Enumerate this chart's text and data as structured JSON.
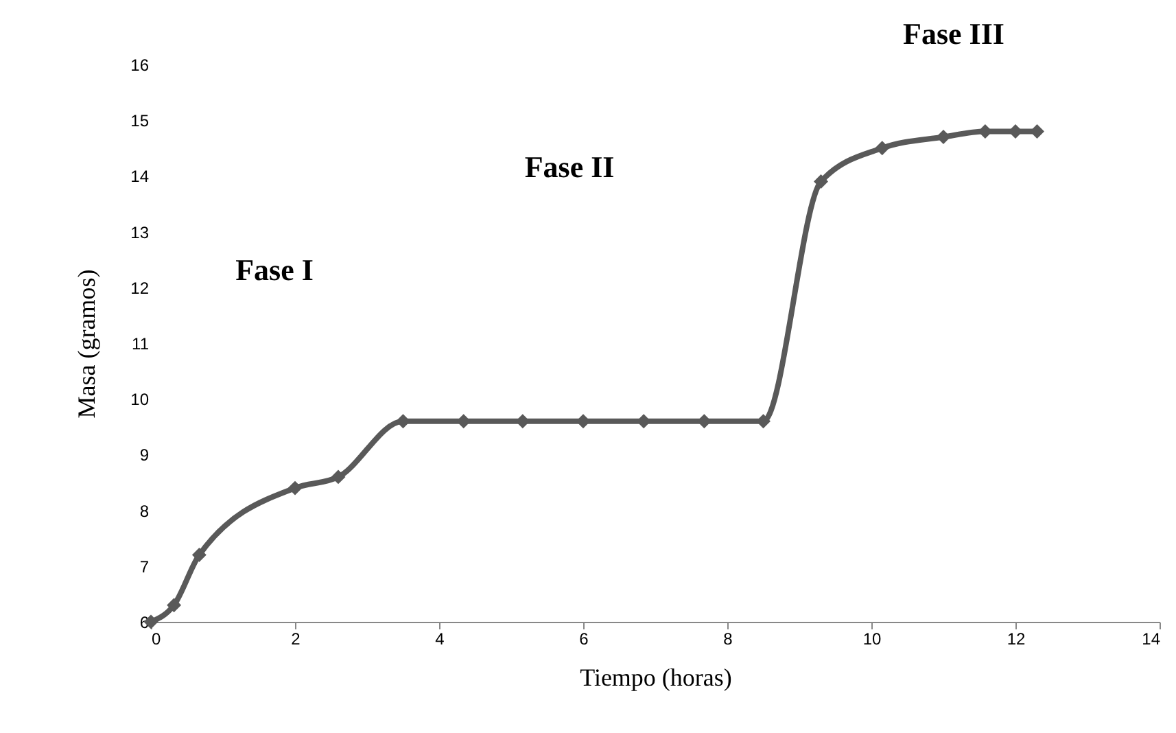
{
  "chart_data": {
    "type": "line",
    "xlabel": "Tiempo (horas)",
    "ylabel": "Masa (gramos)",
    "x": [
      0,
      0.32,
      0.67,
      2.0,
      2.6,
      3.5,
      4.34,
      5.16,
      6.0,
      6.84,
      7.68,
      8.5,
      9.3,
      10.15,
      11.0,
      11.58,
      12.0,
      12.3
    ],
    "series": [
      {
        "color": "#595959",
        "values": [
          6,
          6.3,
          7.2,
          8.4,
          8.6,
          9.6,
          9.6,
          9.6,
          9.6,
          9.6,
          9.6,
          9.6,
          13.9,
          14.5,
          14.7,
          14.8,
          14.8,
          14.8
        ]
      }
    ],
    "xlim": [
      0,
      14
    ],
    "xticks": [
      0,
      2,
      4,
      6,
      8,
      10,
      12,
      14
    ],
    "ylim": [
      6,
      16
    ],
    "yticks": [
      6,
      7,
      8,
      9,
      10,
      11,
      12,
      13,
      14,
      15,
      16
    ],
    "annotations": [
      "Fase I",
      "Fase II",
      "Fase III"
    ],
    "grid": false,
    "legend": false,
    "marker": "diamond",
    "line_style": "solid"
  }
}
